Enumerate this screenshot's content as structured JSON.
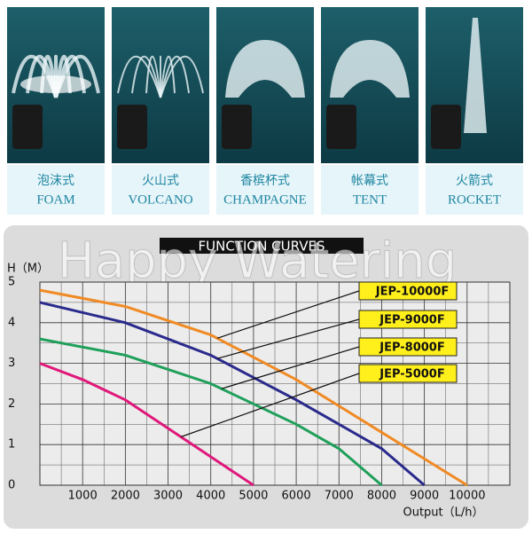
{
  "products": [
    {
      "name_cn": "泡沫式",
      "name_en": "FOAM"
    },
    {
      "name_cn": "火山式",
      "name_en": "VOLCANO"
    },
    {
      "name_cn": "香槟杯式",
      "name_en": "CHAMPAGNE"
    },
    {
      "name_cn": "帐幕式",
      "name_en": "TENT"
    },
    {
      "name_cn": "火箭式",
      "name_en": "ROCKET"
    }
  ],
  "watermark": "Happy Watering",
  "chart_data": {
    "type": "line",
    "title": "FUNCTION CURVES",
    "x_label": "Output（L/h）",
    "y_label": "H（M）",
    "xlim": [
      0,
      11000
    ],
    "ylim": [
      0,
      5
    ],
    "xticks": [
      1000,
      2000,
      3000,
      4000,
      5000,
      6000,
      7000,
      8000,
      9000,
      10000
    ],
    "yticks": [
      0,
      1,
      2,
      3,
      4,
      5
    ],
    "grid": true,
    "series": [
      {
        "name": "JEP-10000F",
        "color": "#f08a24",
        "x": [
          0,
          2000,
          4000,
          6000,
          8000,
          10000
        ],
        "values": [
          4.8,
          4.4,
          3.7,
          2.6,
          1.3,
          0
        ]
      },
      {
        "name": "JEP-9000F",
        "color": "#2a2a8c",
        "x": [
          0,
          2000,
          4000,
          6000,
          8000,
          9000
        ],
        "values": [
          4.5,
          4.0,
          3.2,
          2.1,
          0.9,
          0
        ]
      },
      {
        "name": "JEP-8000F",
        "color": "#1fa05a",
        "x": [
          0,
          2000,
          4000,
          6000,
          7000,
          8000
        ],
        "values": [
          3.6,
          3.2,
          2.5,
          1.5,
          0.9,
          0
        ]
      },
      {
        "name": "JEP-5000F",
        "color": "#e0187a",
        "x": [
          0,
          1000,
          2000,
          3000,
          4000,
          5000
        ],
        "values": [
          3.0,
          2.6,
          2.1,
          1.4,
          0.7,
          0
        ]
      }
    ]
  }
}
